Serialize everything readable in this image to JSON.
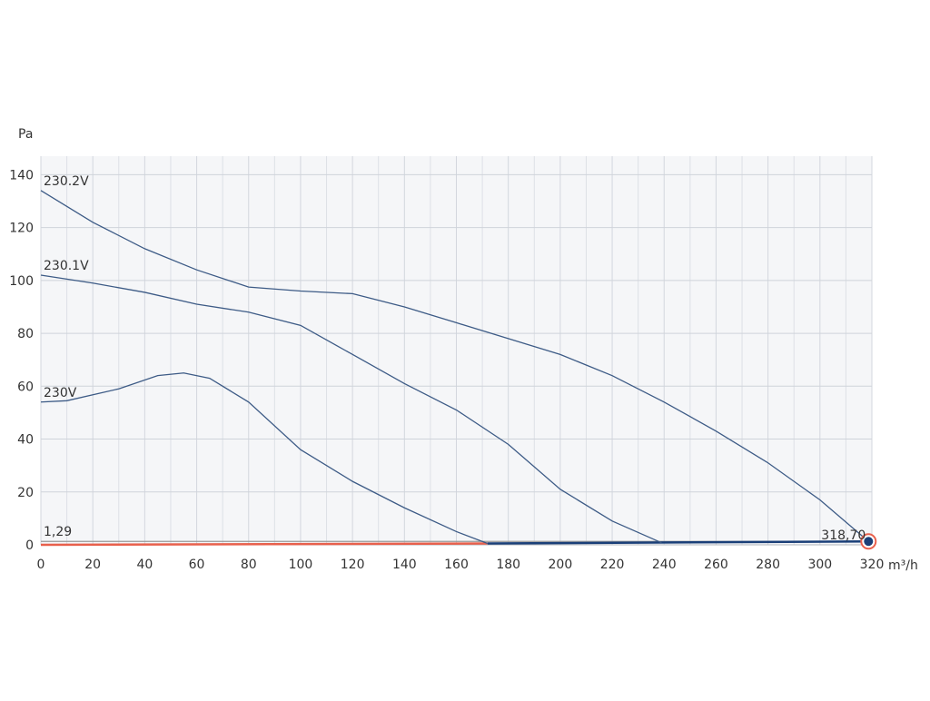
{
  "chart_data": {
    "type": "line",
    "y_axis_label": "Pa",
    "x_axis_label": "m³/h",
    "xlim": [
      0,
      320
    ],
    "ylim": [
      0,
      147
    ],
    "xticks": [
      0,
      20,
      40,
      60,
      80,
      100,
      120,
      140,
      160,
      180,
      200,
      220,
      240,
      260,
      280,
      300,
      320
    ],
    "x_grid": [
      10,
      30,
      50,
      70,
      90,
      110,
      130,
      150,
      170,
      190,
      210,
      230,
      250,
      270,
      290,
      310
    ],
    "yticks": [
      0,
      20,
      40,
      60,
      80,
      100,
      120,
      140
    ],
    "grid": true,
    "series": [
      {
        "name": "230.2V",
        "color": "#3d5b86",
        "x": [
          0,
          20,
          40,
          60,
          80,
          100,
          120,
          140,
          160,
          180,
          200,
          220,
          240,
          260,
          280,
          300,
          318.7
        ],
        "values": [
          134,
          122,
          112,
          104,
          97.5,
          96,
          95,
          90,
          84,
          78,
          72,
          64,
          54,
          43,
          31,
          17,
          1.29
        ]
      },
      {
        "name": "230.1V",
        "color": "#3d5b86",
        "x": [
          0,
          20,
          40,
          60,
          80,
          100,
          120,
          140,
          160,
          180,
          200,
          220,
          239
        ],
        "values": [
          102,
          99,
          95.5,
          91,
          88,
          83,
          72,
          61,
          51,
          38,
          21,
          9,
          0.8
        ]
      },
      {
        "name": "230V",
        "color": "#3d5b86",
        "x": [
          0,
          10,
          30,
          45,
          55,
          65,
          80,
          100,
          120,
          140,
          160,
          172
        ],
        "values": [
          54,
          54.5,
          59,
          64,
          65,
          63,
          54,
          36,
          24,
          14,
          5,
          0.5
        ]
      }
    ],
    "system_lines": [
      {
        "color": "#e8604c",
        "x": [
          0,
          172
        ],
        "values": [
          0,
          0.5
        ]
      },
      {
        "color": "#1a3f78",
        "x": [
          172,
          318.7
        ],
        "values": [
          0.5,
          1.29
        ]
      }
    ],
    "reference_line": {
      "value": 1.29,
      "label": "1,29",
      "color": "#999999"
    },
    "operating_point": {
      "x": 318.7,
      "y": 1.29,
      "label": "318,70",
      "color": "#1a3f78",
      "ring_color": "#e8604c"
    }
  }
}
